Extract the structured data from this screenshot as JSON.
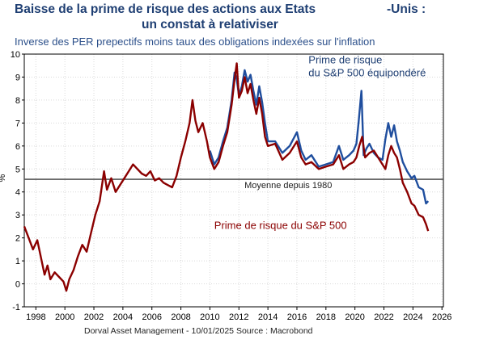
{
  "title_line1": "Baisse de la prime de risque des actions aux Etats",
  "title_line1_end": "-Unis :",
  "title_line2": "un constat à relativiser",
  "subtitle": "Inverse des PER prepectifs moins taux des obligations indexées sur l'inflation",
  "footer": "Dorval Asset Management      - 10/01/2025    Source : Macrobond",
  "chart_data": {
    "type": "line",
    "ylabel": "%",
    "ylim": [
      -1,
      10
    ],
    "xlim": [
      1997.2,
      2026.1
    ],
    "yticks": [
      -1,
      0,
      1,
      2,
      3,
      4,
      5,
      6,
      7,
      8,
      9,
      10
    ],
    "xticks": [
      1998,
      2000,
      2002,
      2004,
      2006,
      2008,
      2010,
      2012,
      2014,
      2016,
      2018,
      2020,
      2022,
      2024,
      2026
    ],
    "grid": true,
    "reference_line": {
      "value": 4.55,
      "label": "Moyenne depuis 1980",
      "color": "#555555"
    },
    "series": [
      {
        "name": "Prime de risque du S&P 500 équipondéré",
        "label_line1": "Prime de risque",
        "label_line2": "du S&P 500 équipondéré",
        "color": "#1f4e9e",
        "x": [
          2010.0,
          2010.3,
          2010.6,
          2010.9,
          2011.2,
          2011.5,
          2011.7,
          2011.85,
          2012.0,
          2012.2,
          2012.4,
          2012.6,
          2012.8,
          2013.0,
          2013.2,
          2013.4,
          2013.6,
          2013.8,
          2014.0,
          2014.5,
          2015.0,
          2015.5,
          2016.0,
          2016.3,
          2016.6,
          2017.0,
          2017.5,
          2018.0,
          2018.5,
          2018.9,
          2019.2,
          2019.6,
          2019.9,
          2020.1,
          2020.25,
          2020.45,
          2020.6,
          2020.8,
          2021.0,
          2021.3,
          2021.6,
          2021.9,
          2022.1,
          2022.3,
          2022.5,
          2022.7,
          2022.9,
          2023.1,
          2023.3,
          2023.6,
          2023.9,
          2024.1,
          2024.4,
          2024.7,
          2024.9,
          2025.05
        ],
        "values": [
          5.8,
          5.2,
          5.5,
          6.2,
          6.8,
          8.0,
          9.2,
          8.9,
          8.2,
          8.6,
          9.3,
          8.8,
          9.1,
          8.4,
          7.8,
          8.6,
          7.9,
          7.0,
          6.2,
          6.2,
          5.7,
          6.0,
          6.6,
          5.8,
          5.4,
          5.6,
          5.1,
          5.2,
          5.3,
          6.0,
          5.4,
          5.6,
          5.8,
          6.1,
          7.0,
          8.4,
          5.6,
          5.9,
          6.1,
          5.7,
          5.5,
          5.4,
          6.3,
          7.0,
          6.4,
          6.9,
          6.2,
          5.8,
          5.3,
          4.9,
          4.6,
          4.7,
          4.2,
          4.1,
          3.5,
          3.6
        ]
      },
      {
        "name": "Prime de risque du S&P 500",
        "color": "#8b0000",
        "x": [
          1997.2,
          1997.5,
          1997.8,
          1998.1,
          1998.4,
          1998.6,
          1998.8,
          1999.0,
          1999.3,
          1999.6,
          1999.9,
          2000.1,
          2000.3,
          2000.6,
          2000.9,
          2001.2,
          2001.5,
          2001.8,
          2002.1,
          2002.4,
          2002.7,
          2002.9,
          2003.2,
          2003.5,
          2003.8,
          2004.1,
          2004.4,
          2004.7,
          2005.0,
          2005.3,
          2005.6,
          2005.9,
          2006.2,
          2006.5,
          2006.8,
          2007.1,
          2007.4,
          2007.7,
          2008.0,
          2008.3,
          2008.6,
          2008.8,
          2009.0,
          2009.2,
          2009.5,
          2009.8,
          2010.0,
          2010.3,
          2010.6,
          2010.9,
          2011.2,
          2011.5,
          2011.7,
          2011.85,
          2012.0,
          2012.2,
          2012.4,
          2012.6,
          2012.8,
          2013.0,
          2013.2,
          2013.4,
          2013.6,
          2013.8,
          2014.0,
          2014.5,
          2015.0,
          2015.5,
          2016.0,
          2016.3,
          2016.6,
          2017.0,
          2017.5,
          2018.0,
          2018.5,
          2018.9,
          2019.2,
          2019.6,
          2019.9,
          2020.1,
          2020.3,
          2020.5,
          2020.7,
          2021.0,
          2021.3,
          2021.6,
          2021.9,
          2022.1,
          2022.3,
          2022.5,
          2022.7,
          2022.9,
          2023.1,
          2023.3,
          2023.6,
          2023.9,
          2024.1,
          2024.4,
          2024.7,
          2024.9,
          2025.05
        ],
        "values": [
          2.5,
          2.0,
          1.5,
          1.9,
          1.0,
          0.4,
          0.8,
          0.2,
          0.5,
          0.3,
          0.1,
          -0.3,
          0.2,
          0.6,
          1.2,
          1.7,
          1.4,
          2.2,
          3.0,
          3.6,
          4.9,
          4.1,
          4.6,
          4.0,
          4.3,
          4.6,
          4.9,
          5.2,
          5.0,
          4.8,
          4.7,
          4.9,
          4.5,
          4.6,
          4.4,
          4.3,
          4.2,
          4.7,
          5.5,
          6.2,
          7.0,
          8.0,
          7.1,
          6.6,
          7.0,
          6.2,
          5.5,
          5.0,
          5.3,
          6.0,
          6.6,
          7.8,
          8.9,
          9.6,
          8.1,
          8.4,
          9.0,
          8.3,
          8.7,
          8.0,
          7.4,
          8.1,
          7.4,
          6.4,
          6.0,
          6.1,
          5.4,
          5.7,
          6.2,
          5.5,
          5.2,
          5.3,
          5.0,
          5.1,
          5.2,
          5.6,
          5.0,
          5.2,
          5.3,
          5.5,
          6.0,
          6.4,
          5.5,
          5.7,
          5.8,
          5.5,
          5.2,
          5.0,
          5.6,
          6.0,
          5.7,
          5.5,
          5.0,
          4.4,
          4.0,
          3.5,
          3.4,
          3.0,
          2.9,
          2.6,
          2.3
        ]
      }
    ],
    "annotation_red": "Prime de risque du S&P 500"
  }
}
